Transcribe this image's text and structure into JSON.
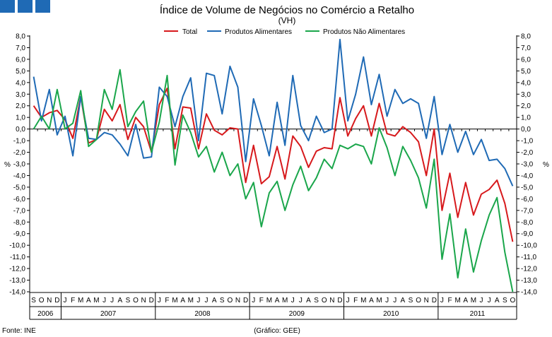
{
  "header": {
    "logo_name": "publisher-logo-blocks",
    "logo_color": "#1f6ab5"
  },
  "chart_data": {
    "type": "line",
    "title": "Índice de Volume de Negócios no Comércio a Retalho",
    "subtitle": "(VH)",
    "ylabel_left": "%",
    "ylabel_right": "%",
    "ylim": [
      -14,
      8
    ],
    "ytick_step": 1,
    "ytick_labels": [
      "8,0",
      "7,0",
      "6,0",
      "5,0",
      "4,0",
      "3,0",
      "2,0",
      "1,0",
      "0,0",
      "-1,0",
      "-2,0",
      "-3,0",
      "-4,0",
      "-5,0",
      "-6,0",
      "-7,0",
      "-8,0",
      "-9,0",
      "-10,0",
      "-11,0",
      "-12,0",
      "-13,0",
      "-14,0"
    ],
    "grid": false,
    "zero_line": true,
    "legend_position": "top-center",
    "months": [
      "S",
      "O",
      "N",
      "D",
      "J",
      "F",
      "M",
      "A",
      "M",
      "J",
      "J",
      "A",
      "S",
      "O",
      "N",
      "D",
      "J",
      "F",
      "M",
      "A",
      "M",
      "J",
      "J",
      "A",
      "S",
      "O",
      "N",
      "D",
      "J",
      "F",
      "M",
      "A",
      "M",
      "J",
      "J",
      "A",
      "S",
      "O",
      "N",
      "D",
      "J",
      "F",
      "M",
      "A",
      "M",
      "J",
      "J",
      "A",
      "S",
      "O",
      "N",
      "D",
      "J",
      "F",
      "M",
      "A",
      "M",
      "J",
      "J",
      "A",
      "S",
      "O"
    ],
    "years": [
      {
        "label": "2006",
        "months": 4
      },
      {
        "label": "2007",
        "months": 12
      },
      {
        "label": "2008",
        "months": 12
      },
      {
        "label": "2009",
        "months": 12
      },
      {
        "label": "2010",
        "months": 12
      },
      {
        "label": "2011",
        "months": 10
      }
    ],
    "series": [
      {
        "name": "Total",
        "color": "#d7191c",
        "values": [
          2.0,
          1.0,
          1.4,
          1.6,
          0.8,
          -0.8,
          2.8,
          -1.2,
          -0.9,
          1.7,
          0.7,
          2.1,
          -0.9,
          1.0,
          0.2,
          -2.0,
          2.1,
          3.5,
          -1.7,
          1.9,
          1.8,
          -1.7,
          1.3,
          -0.1,
          -0.5,
          0.1,
          0.0,
          -4.6,
          -1.4,
          -4.7,
          -4.1,
          -1.5,
          -4.3,
          -0.6,
          -1.5,
          -3.3,
          -1.9,
          -1.6,
          -1.7,
          2.7,
          -0.6,
          0.9,
          2.0,
          -0.6,
          2.2,
          -0.4,
          -0.6,
          0.2,
          -0.3,
          -1.1,
          -4.0,
          0.0,
          -7.0,
          -3.8,
          -7.6,
          -4.6,
          -7.4,
          -5.6,
          -5.2,
          -4.4,
          -6.4,
          -9.7
        ]
      },
      {
        "name": "Produtos Alimentares",
        "color": "#1f6ab5",
        "values": [
          4.5,
          0.7,
          3.4,
          -0.5,
          1.1,
          -2.3,
          2.8,
          -0.8,
          -0.9,
          -0.3,
          -0.5,
          -1.3,
          -2.3,
          0.4,
          -2.5,
          -2.4,
          3.6,
          2.8,
          0.2,
          2.8,
          4.4,
          -1.0,
          4.8,
          4.6,
          1.3,
          5.4,
          3.6,
          -2.8,
          2.6,
          0.3,
          -2.3,
          2.3,
          -1.4,
          4.6,
          0.3,
          -1.0,
          1.1,
          -0.3,
          0.0,
          7.7,
          0.7,
          3.0,
          6.2,
          2.1,
          4.7,
          1.1,
          3.4,
          2.2,
          2.6,
          2.2,
          -0.8,
          2.8,
          -2.2,
          0.4,
          -2.0,
          -0.2,
          -2.2,
          -0.9,
          -2.7,
          -2.6,
          -3.4,
          -4.9
        ]
      },
      {
        "name": "Produtos Não Alimentares",
        "color": "#1aa64b",
        "values": [
          0.0,
          1.1,
          0.0,
          3.4,
          0.0,
          0.5,
          3.3,
          -1.5,
          -0.9,
          3.4,
          1.7,
          5.1,
          0.2,
          1.5,
          2.4,
          -2.0,
          0.6,
          4.6,
          -3.1,
          1.2,
          -0.3,
          -2.4,
          -1.5,
          -3.7,
          -2.0,
          -4.0,
          -3.0,
          -6.0,
          -4.6,
          -8.4,
          -5.5,
          -4.5,
          -7.0,
          -4.8,
          -3.2,
          -5.3,
          -4.2,
          -2.6,
          -3.4,
          -1.4,
          -1.7,
          -1.3,
          -1.5,
          -3.0,
          0.1,
          -1.6,
          -4.0,
          -1.5,
          -2.7,
          -4.2,
          -6.8,
          -2.6,
          -11.2,
          -7.3,
          -12.8,
          -8.6,
          -12.3,
          -9.6,
          -7.4,
          -5.9,
          -10.6,
          -14.0
        ]
      }
    ]
  },
  "footer": {
    "source": "Fonte: INE",
    "credit": "(Gráfico: GEE)"
  }
}
